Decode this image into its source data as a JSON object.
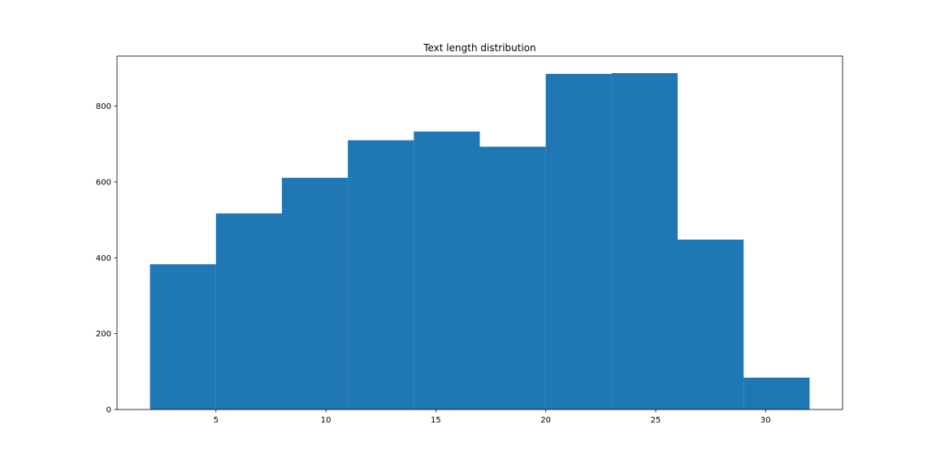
{
  "chart_data": {
    "type": "bar",
    "title": "Text length distribution",
    "xlabel": "",
    "ylabel": "",
    "xlim": [
      0.5,
      33.5
    ],
    "ylim": [
      0,
      932
    ],
    "bin_edges": [
      2,
      5,
      8,
      11,
      14,
      17,
      20,
      23,
      26,
      29,
      32
    ],
    "values": [
      383,
      517,
      611,
      710,
      733,
      693,
      885,
      887,
      448,
      84
    ],
    "color": "#1f77b4",
    "x_ticks": [
      5,
      10,
      15,
      20,
      25,
      30
    ],
    "y_ticks": [
      0,
      200,
      400,
      600,
      800
    ],
    "grid": false,
    "legend": "none"
  }
}
